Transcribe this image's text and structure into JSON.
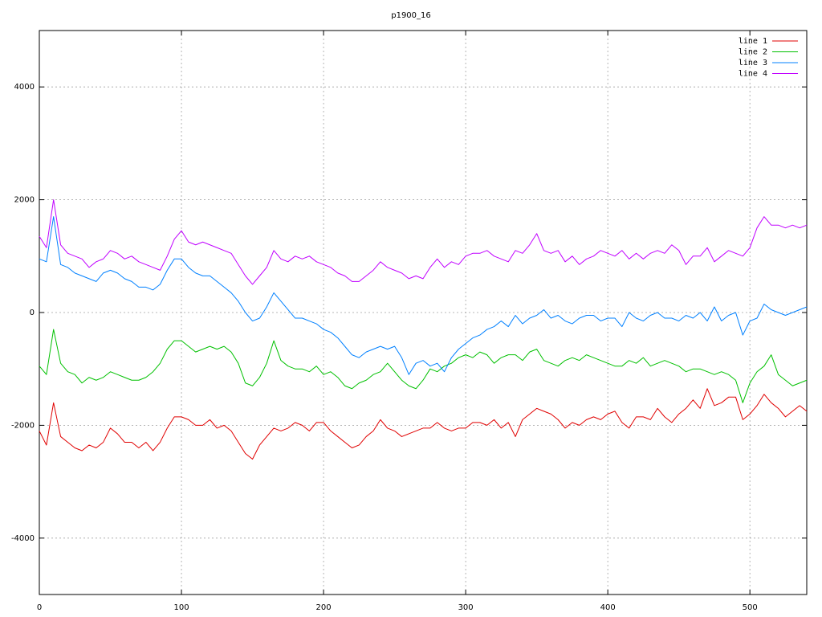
{
  "chart_data": {
    "type": "line",
    "title": "p1900_16",
    "x": [
      0,
      5,
      10,
      15,
      20,
      25,
      30,
      35,
      40,
      45,
      50,
      55,
      60,
      65,
      70,
      75,
      80,
      85,
      90,
      95,
      100,
      105,
      110,
      115,
      120,
      125,
      130,
      135,
      140,
      145,
      150,
      155,
      160,
      165,
      170,
      175,
      180,
      185,
      190,
      195,
      200,
      205,
      210,
      215,
      220,
      225,
      230,
      235,
      240,
      245,
      250,
      255,
      260,
      265,
      270,
      275,
      280,
      285,
      290,
      295,
      300,
      305,
      310,
      315,
      320,
      325,
      330,
      335,
      340,
      345,
      350,
      355,
      360,
      365,
      370,
      375,
      380,
      385,
      390,
      395,
      400,
      405,
      410,
      415,
      420,
      425,
      430,
      435,
      440,
      445,
      450,
      455,
      460,
      465,
      470,
      475,
      480,
      485,
      490,
      495,
      500,
      505,
      510,
      515,
      520,
      525,
      530,
      535,
      540
    ],
    "series": [
      {
        "name": "line 1",
        "color": "#e00000",
        "values": [
          -2100,
          -2350,
          -1600,
          -2200,
          -2300,
          -2400,
          -2450,
          -2350,
          -2400,
          -2300,
          -2050,
          -2150,
          -2300,
          -2300,
          -2400,
          -2300,
          -2450,
          -2300,
          -2050,
          -1850,
          -1850,
          -1900,
          -2000,
          -2000,
          -1900,
          -2050,
          -2000,
          -2100,
          -2300,
          -2500,
          -2600,
          -2350,
          -2200,
          -2050,
          -2100,
          -2050,
          -1950,
          -2000,
          -2100,
          -1950,
          -1950,
          -2100,
          -2200,
          -2300,
          -2400,
          -2350,
          -2200,
          -2100,
          -1900,
          -2050,
          -2100,
          -2200,
          -2150,
          -2100,
          -2050,
          -2050,
          -1950,
          -2050,
          -2100,
          -2050,
          -2050,
          -1950,
          -1950,
          -2000,
          -1900,
          -2050,
          -1950,
          -2200,
          -1900,
          -1800,
          -1700,
          -1750,
          -1800,
          -1900,
          -2050,
          -1950,
          -2000,
          -1900,
          -1850,
          -1900,
          -1800,
          -1750,
          -1950,
          -2050,
          -1850,
          -1850,
          -1900,
          -1700,
          -1850,
          -1950,
          -1800,
          -1700,
          -1550,
          -1700,
          -1350,
          -1650,
          -1600,
          -1500,
          -1500,
          -1900,
          -1800,
          -1650,
          -1450,
          -1600,
          -1700,
          -1850,
          -1750,
          -1650,
          -1750
        ]
      },
      {
        "name": "line 2",
        "color": "#00c000",
        "values": [
          -950,
          -1100,
          -300,
          -900,
          -1050,
          -1100,
          -1250,
          -1150,
          -1200,
          -1150,
          -1050,
          -1100,
          -1150,
          -1200,
          -1200,
          -1150,
          -1050,
          -900,
          -650,
          -500,
          -500,
          -600,
          -700,
          -650,
          -600,
          -650,
          -600,
          -700,
          -900,
          -1250,
          -1300,
          -1150,
          -900,
          -500,
          -850,
          -950,
          -1000,
          -1000,
          -1050,
          -950,
          -1100,
          -1050,
          -1150,
          -1300,
          -1350,
          -1250,
          -1200,
          -1100,
          -1050,
          -900,
          -1050,
          -1200,
          -1300,
          -1350,
          -1200,
          -1000,
          -1050,
          -950,
          -900,
          -800,
          -750,
          -800,
          -700,
          -750,
          -900,
          -800,
          -750,
          -750,
          -850,
          -700,
          -650,
          -850,
          -900,
          -950,
          -850,
          -800,
          -850,
          -750,
          -800,
          -850,
          -900,
          -950,
          -950,
          -850,
          -900,
          -800,
          -950,
          -900,
          -850,
          -900,
          -950,
          -1050,
          -1000,
          -1000,
          -1050,
          -1100,
          -1050,
          -1100,
          -1200,
          -1600,
          -1250,
          -1050,
          -950,
          -750,
          -1100,
          -1200,
          -1300,
          -1250,
          -1200
        ]
      },
      {
        "name": "line 3",
        "color": "#0080ff",
        "values": [
          950,
          900,
          1700,
          850,
          800,
          700,
          650,
          600,
          550,
          700,
          750,
          700,
          600,
          550,
          450,
          450,
          400,
          500,
          750,
          950,
          950,
          800,
          700,
          650,
          650,
          550,
          450,
          350,
          200,
          0,
          -150,
          -100,
          100,
          350,
          200,
          50,
          -100,
          -100,
          -150,
          -200,
          -300,
          -350,
          -450,
          -600,
          -750,
          -800,
          -700,
          -650,
          -600,
          -650,
          -600,
          -800,
          -1100,
          -900,
          -850,
          -950,
          -900,
          -1050,
          -800,
          -650,
          -550,
          -450,
          -400,
          -300,
          -250,
          -150,
          -250,
          -50,
          -200,
          -100,
          -50,
          50,
          -100,
          -50,
          -150,
          -200,
          -100,
          -50,
          -50,
          -150,
          -100,
          -100,
          -250,
          0,
          -100,
          -150,
          -50,
          0,
          -100,
          -100,
          -150,
          -50,
          -100,
          0,
          -150,
          100,
          -150,
          -50,
          0,
          -400,
          -150,
          -100,
          150,
          50,
          0,
          -50,
          0,
          50,
          100
        ]
      },
      {
        "name": "line 4",
        "color": "#c000ff",
        "values": [
          1350,
          1150,
          2000,
          1200,
          1050,
          1000,
          950,
          800,
          900,
          950,
          1100,
          1050,
          950,
          1000,
          900,
          850,
          800,
          750,
          1000,
          1300,
          1450,
          1250,
          1200,
          1250,
          1200,
          1150,
          1100,
          1050,
          850,
          650,
          500,
          650,
          800,
          1100,
          950,
          900,
          1000,
          950,
          1000,
          900,
          850,
          800,
          700,
          650,
          550,
          550,
          650,
          750,
          900,
          800,
          750,
          700,
          600,
          650,
          600,
          800,
          950,
          800,
          900,
          850,
          1000,
          1050,
          1050,
          1100,
          1000,
          950,
          900,
          1100,
          1050,
          1200,
          1400,
          1100,
          1050,
          1100,
          900,
          1000,
          850,
          950,
          1000,
          1100,
          1050,
          1000,
          1100,
          950,
          1050,
          950,
          1050,
          1100,
          1050,
          1200,
          1100,
          850,
          1000,
          1000,
          1150,
          900,
          1000,
          1100,
          1050,
          1000,
          1150,
          1500,
          1700,
          1550,
          1550,
          1500,
          1550,
          1500,
          1550
        ]
      }
    ],
    "xlim": [
      0,
      540
    ],
    "ylim": [
      -5000,
      5000
    ],
    "xticks": [
      0,
      100,
      200,
      300,
      400,
      500
    ],
    "yticks": [
      -4000,
      -2000,
      0,
      2000,
      4000
    ],
    "grid": true,
    "legend": "top-right"
  }
}
